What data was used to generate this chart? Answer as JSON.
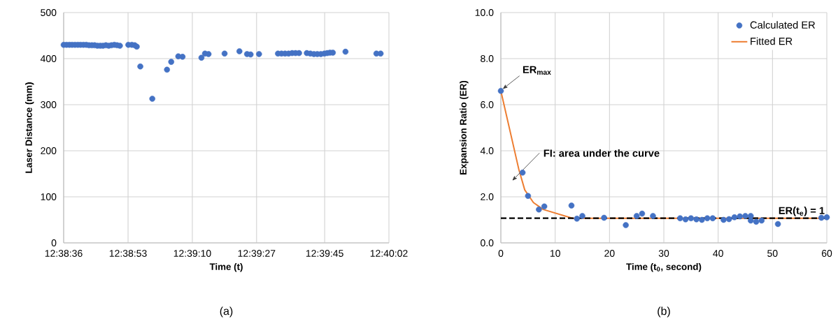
{
  "chart_data": [
    {
      "type": "scatter",
      "xlabel": "Time (t)",
      "ylabel": "Laser Distance (mm)",
      "color": "#4472c4",
      "marker": "circle",
      "grid": true,
      "x": [
        12.64333,
        12.64354,
        12.64375,
        12.64395,
        12.64416,
        12.64437,
        12.64457,
        12.64478,
        12.64499,
        12.64519,
        12.6454,
        12.6456,
        12.64581,
        12.64602,
        12.64622,
        12.64643,
        12.64664,
        12.64684,
        12.64705,
        12.64725,
        12.64746,
        12.64808,
        12.64834,
        12.64855,
        12.6487,
        12.64896,
        12.64984,
        12.65092,
        12.65123,
        12.65175,
        12.65206,
        12.65345,
        12.65371,
        12.65397,
        12.65515,
        12.65624,
        12.6568,
        12.65706,
        12.65768,
        12.65907,
        12.65933,
        12.65959,
        12.65985,
        12.66011,
        12.66036,
        12.66062,
        12.66119,
        12.66145,
        12.66171,
        12.66196,
        12.66222,
        12.66248,
        12.66269,
        12.66289,
        12.6631,
        12.66403,
        12.6663,
        12.66661
      ],
      "values": [
        430,
        430,
        430,
        430,
        430,
        430,
        430,
        430,
        430,
        429,
        429,
        429,
        428,
        428,
        428,
        429,
        428,
        429,
        430,
        429,
        428,
        430,
        430,
        429,
        426,
        383,
        313,
        376,
        393,
        405,
        404,
        402,
        411,
        410,
        411,
        416,
        410,
        409,
        410,
        411,
        411,
        411,
        411,
        412,
        412,
        412,
        412,
        411,
        410,
        410,
        410,
        411,
        412,
        413,
        413,
        415,
        411,
        411
      ],
      "xlim": [
        12.64333,
        12.66722
      ],
      "ylim": [
        0,
        500
      ],
      "xticks": [
        {
          "value": 12.64333,
          "label": "12:38:36"
        },
        {
          "value": 12.64806,
          "label": "12:38:53"
        },
        {
          "value": 12.65278,
          "label": "12:39:10"
        },
        {
          "value": 12.6575,
          "label": "12:39:27"
        },
        {
          "value": 12.6625,
          "label": "12:39:45"
        },
        {
          "value": 12.66722,
          "label": "12:40:02"
        }
      ],
      "yticks": [
        0,
        100,
        200,
        300,
        400,
        500
      ],
      "annotations": [
        "(a)"
      ]
    },
    {
      "type": "scatter",
      "xlabel": "Time (t$_{0}$, second)",
      "ylabel": "Expansion Ratio (ER)",
      "grid": true,
      "legend": "top right",
      "series": [
        {
          "name": "Calculated ER",
          "type": "scatter",
          "marker": "circle",
          "color": "#4472c4",
          "x": [
            0,
            4,
            5,
            7,
            8,
            13,
            14,
            15,
            19,
            23,
            25,
            26,
            28,
            33,
            34,
            35,
            36,
            37,
            38,
            39,
            41,
            42,
            43,
            44,
            45,
            46,
            46,
            47,
            48,
            51,
            59,
            60
          ],
          "values": [
            6.6,
            3.05,
            2.04,
            1.45,
            1.58,
            1.62,
            1.05,
            1.17,
            1.09,
            0.77,
            1.17,
            1.27,
            1.17,
            1.07,
            1.02,
            1.07,
            1.02,
            1.0,
            1.07,
            1.07,
            1.0,
            1.03,
            1.11,
            1.15,
            1.17,
            1.17,
            0.97,
            0.92,
            0.97,
            0.82,
            1.09,
            1.11
          ]
        },
        {
          "name": "Fitted ER",
          "type": "line",
          "marker": "none",
          "color": "#ed7d31",
          "x": [
            0,
            3.3,
            4.4,
            6,
            7.8,
            13.2,
            60
          ],
          "values": [
            6.6,
            3.2,
            2.3,
            1.75,
            1.45,
            1.07,
            1.07
          ]
        }
      ],
      "ref_lines": [
        {
          "axis": "y",
          "value": 1.07,
          "label": "ER(t$_{e}$) = 1",
          "color": "#000000",
          "line_style": "dashed"
        }
      ],
      "xlim": [
        0,
        60
      ],
      "ylim": [
        0,
        10
      ],
      "xticks": [
        0,
        10,
        20,
        30,
        40,
        50,
        60
      ],
      "yticks": [
        {
          "value": 0,
          "label": "0.0"
        },
        {
          "value": 2,
          "label": "2.0"
        },
        {
          "value": 4,
          "label": "4.0"
        },
        {
          "value": 6,
          "label": "6.0"
        },
        {
          "value": 8,
          "label": "8.0"
        },
        {
          "value": 10,
          "label": "10.0"
        }
      ],
      "annotations": [
        {
          "text": "ER$_{max}$",
          "x": 0,
          "y": 6.6
        },
        "FI: area under the curve",
        "(b)"
      ]
    }
  ]
}
